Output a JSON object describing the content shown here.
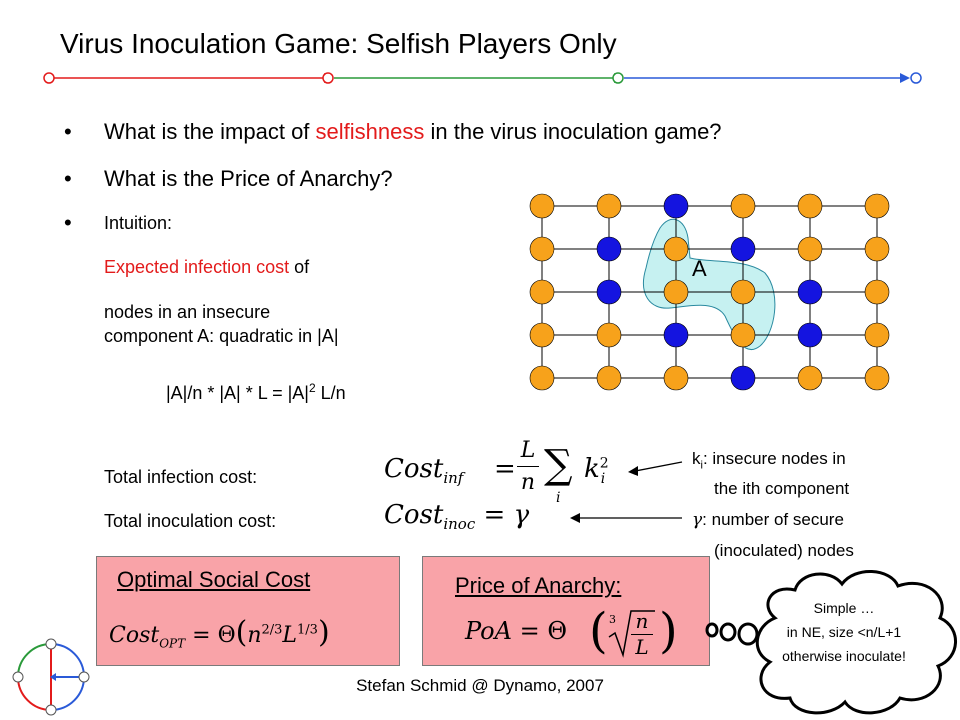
{
  "title": "Virus Inoculation Game: Selfish Players Only",
  "bullets": {
    "b1_pre": "What is the impact of ",
    "b1_red": "selfishness",
    "b1_post": " in the virus inoculation game?",
    "b2": "What is the Price of Anarchy?",
    "b3": "Intuition:"
  },
  "intuition": {
    "line1_red": "Expected infection cost",
    "line1_post": " of",
    "line2": "nodes in an insecure",
    "line3": "component A: quadratic in |A|",
    "formula_pre": "|A|/n * |A| * L = |A|",
    "formula_sup": "2",
    "formula_post": " L/n"
  },
  "grid": {
    "label": "A",
    "colors": {
      "insecure": "#f7a21b",
      "secure": "#1414e0",
      "region": "#c6f1f1"
    },
    "rows": [
      "OOBOOO",
      "OBOBOO",
      "OBOOBO",
      "OOBOBO",
      "OOOBOO"
    ]
  },
  "costs": {
    "infection_label": "Total infection cost:",
    "inoculation_label": "Total inoculation cost:",
    "inf_formula": {
      "lhs": "Cost",
      "sub": "inf",
      "L": "L",
      "n": "n",
      "sum_index": "i",
      "k": "k",
      "k_sub": "i",
      "k_sup": "2"
    },
    "inoc_formula": {
      "lhs": "Cost",
      "sub": "inoc",
      "rhs": "γ"
    },
    "annot1_k": "k",
    "annot1_sub": "i",
    "annot1_rest": ": insecure nodes in",
    "annot1_line2": "the ith component",
    "annot2_gamma": "γ",
    "annot2_rest": ": number of secure",
    "annot2_line2": "(inoculated) nodes"
  },
  "optimal_box": {
    "title": "Optimal Social Cost",
    "formula": {
      "lhs": "Cost",
      "sub": "OPT",
      "theta": "Θ",
      "n": "n",
      "n_sup": "2/3",
      "L": "L",
      "L_sup": "1/3"
    }
  },
  "poa_box": {
    "title": "Price of Anarchy:",
    "formula": {
      "lhs": "PoA",
      "theta": "Θ",
      "root": "3",
      "n": "n",
      "L": "L"
    }
  },
  "cloud": {
    "line1": "Simple …",
    "line2": "in NE, size <n/L+1",
    "line3": "otherwise inoculate!"
  },
  "footer": "Stefan Schmid @ Dynamo, 2007"
}
